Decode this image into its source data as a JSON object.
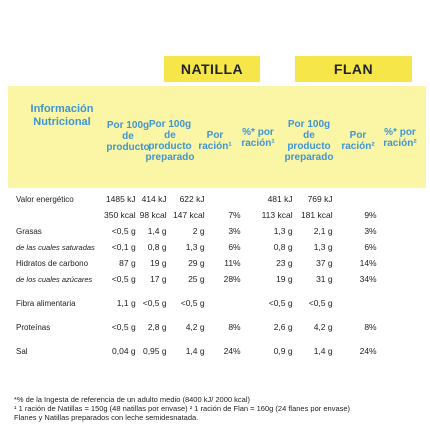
{
  "headers": {
    "natilla": "NATILLA",
    "flan": "FLAN",
    "info": "Información Nutricional",
    "cols": [
      "Por 100g de producto",
      "Por 100g de producto preparado",
      "Por ración¹",
      "%* por ración¹",
      "Por 100g de producto preparado",
      "Por ración²",
      "%* por ración²"
    ]
  },
  "rows": [
    {
      "label": "Valor energético",
      "sub": false,
      "v": [
        "1485 kJ",
        "414 kJ",
        "622 kJ",
        "",
        "481 kJ",
        "769 kJ",
        ""
      ]
    },
    {
      "label": "",
      "sub": false,
      "v": [
        "350 kcal",
        "98 kcal",
        "147 kcal",
        "7%",
        "113 kcal",
        "181 kcal",
        "9%"
      ]
    },
    {
      "label": "Grasas",
      "sub": false,
      "v": [
        "<0,5 g",
        "1,4 g",
        "2 g",
        "3%",
        "1,3 g",
        "2,1 g",
        "3%"
      ]
    },
    {
      "label": "de las cuales saturadas",
      "sub": true,
      "v": [
        "<0,1 g",
        "0,8 g",
        "1,3 g",
        "6%",
        "0,8 g",
        "1,3 g",
        "6%"
      ]
    },
    {
      "label": "Hidratos de carbono",
      "sub": false,
      "v": [
        "87 g",
        "19 g",
        "29 g",
        "11%",
        "23 g",
        "37 g",
        "14%"
      ]
    },
    {
      "label": "de los cuales azúcares",
      "sub": true,
      "v": [
        "<0,5 g",
        "17 g",
        "25 g",
        "28%",
        "19 g",
        "31 g",
        "34%"
      ]
    },
    {
      "label": "Fibra alimentaria",
      "sub": false,
      "v": [
        "1,1 g",
        "<0,5 g",
        "<0,5 g",
        "",
        "<0,5 g",
        "<0,5 g",
        ""
      ]
    },
    {
      "label": "Proteínas",
      "sub": false,
      "v": [
        "<0,5 g",
        "2,8 g",
        "4,2 g",
        "8%",
        "2,6 g",
        "4,2 g",
        "8%"
      ]
    },
    {
      "label": "Sal",
      "sub": false,
      "v": [
        "0,04 g",
        "0,95 g",
        "1,4 g",
        "24%",
        "0,9 g",
        "1,4 g",
        "24%"
      ]
    }
  ],
  "footnotes": [
    "*% de la Ingesta de referencia de un adulto medio (8400 kJ/ 2000 kcal)",
    "¹ 1 ración de Natillas = 150g (48 natillas por envase) ² 1 ración de Flan = 160g (24 flanes por envase)",
    "Flanes y Natillas preparados con leche semidesnatada."
  ]
}
